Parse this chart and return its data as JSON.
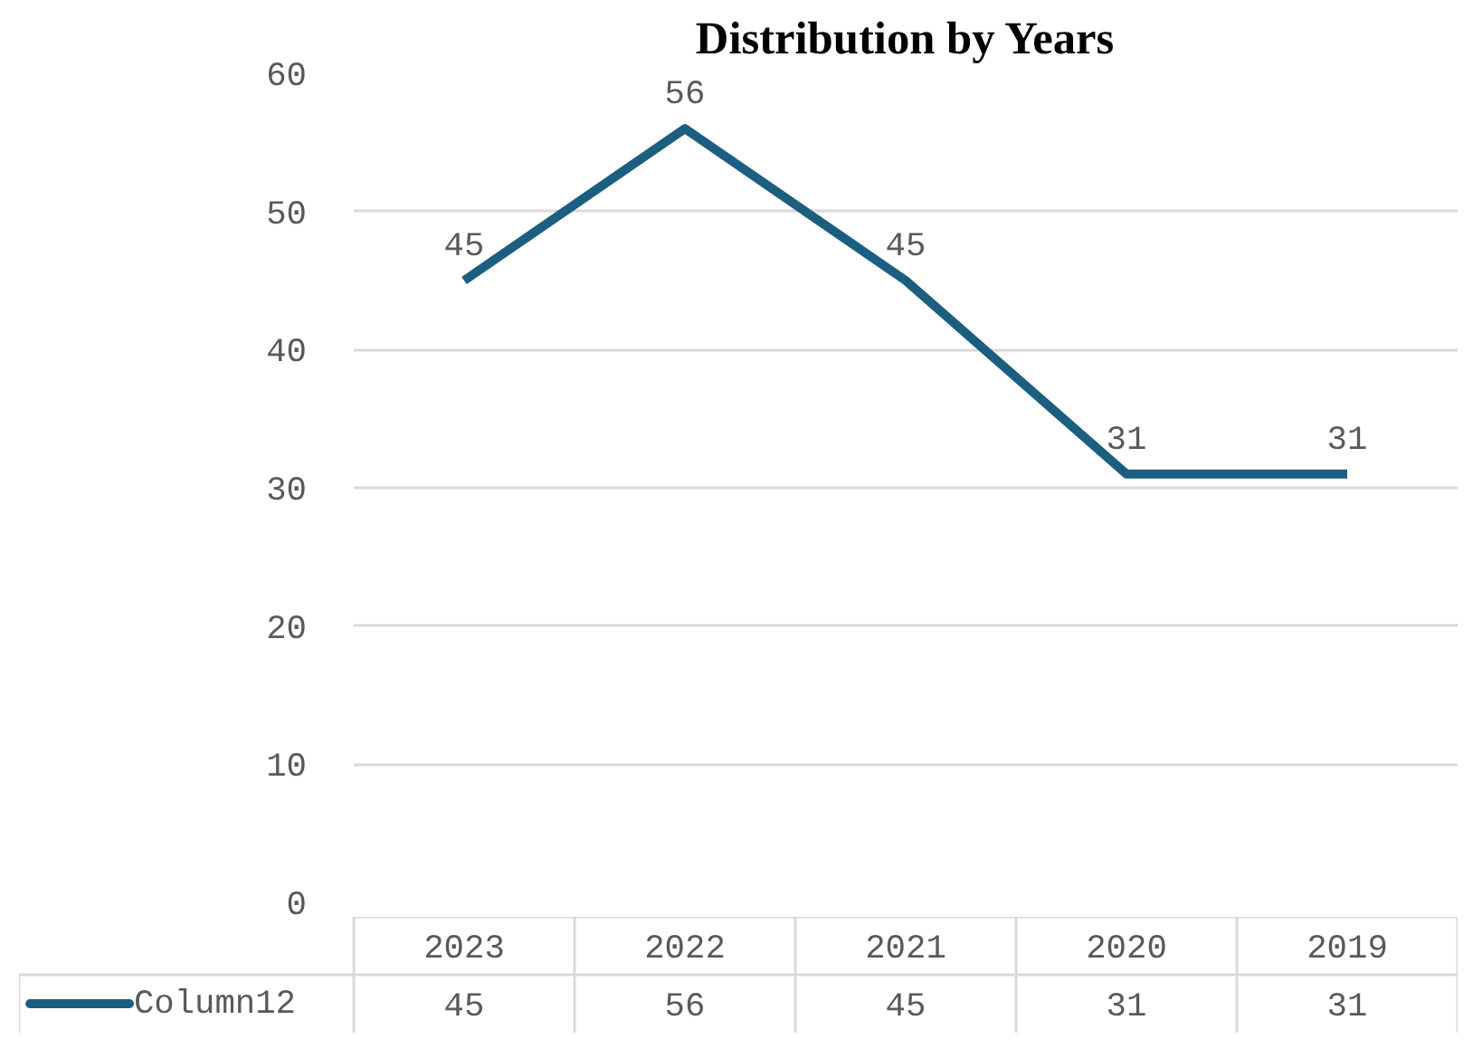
{
  "chart_data": {
    "type": "line",
    "title": "Distribution by Years",
    "categories": [
      "2023",
      "2022",
      "2021",
      "2020",
      "2019"
    ],
    "series": [
      {
        "name": "Column12",
        "color": "#1b5e80",
        "values": [
          45,
          56,
          45,
          31,
          31
        ]
      }
    ],
    "annotations": [
      {
        "text": "45",
        "x": "2023",
        "y": 45
      },
      {
        "text": "56",
        "x": "2022",
        "y": 56
      },
      {
        "text": "45",
        "x": "2021",
        "y": 45
      },
      {
        "text": "31",
        "x": "2020",
        "y": 31
      },
      {
        "text": "31",
        "x": "2019",
        "y": 31
      }
    ],
    "ylim": [
      0,
      60
    ],
    "yticks": [
      0,
      10,
      20,
      30,
      40,
      50,
      60
    ],
    "grid": "y",
    "legend": "bottom",
    "data_labels": true,
    "marker": "none",
    "line_style": "solid"
  }
}
